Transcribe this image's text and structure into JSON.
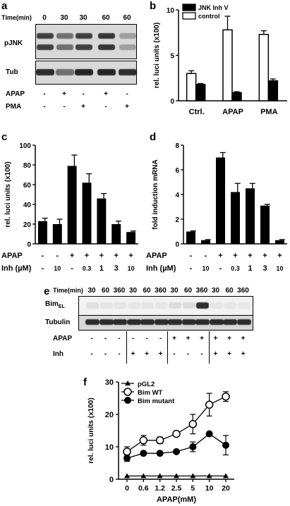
{
  "panels": {
    "a": {
      "letter": "a",
      "time_label": "Time(min)",
      "times": [
        "0",
        "30",
        "30",
        "60",
        "60"
      ],
      "blot_labels": [
        "pJNK",
        "Tub"
      ],
      "rows": [
        {
          "label": "APAP",
          "cells": [
            "-",
            "+",
            "-",
            "+",
            "-"
          ]
        },
        {
          "label": "PMA",
          "cells": [
            "-",
            "-",
            "+",
            "-",
            "+"
          ]
        }
      ],
      "band_levels": {
        "pJNK": [
          0.8,
          0.55,
          0.8,
          0.85,
          0.3
        ],
        "Tub": [
          0.9,
          0.55,
          0.95,
          0.95,
          0.9
        ]
      }
    },
    "e": {
      "letter": "e",
      "time_label": "Time(min)",
      "times": [
        "30",
        "60",
        "360",
        "30",
        "60",
        "360",
        "30",
        "60",
        "360",
        "30",
        "60",
        "360"
      ],
      "blot_labels": [
        "Bim",
        "EL",
        "Tubulin"
      ],
      "rows": [
        {
          "label": "APAP",
          "cells": [
            "-",
            "-",
            "-",
            "-",
            "-",
            "-",
            "+",
            "+",
            "+",
            "+",
            "+",
            "+"
          ]
        },
        {
          "label": "Inh",
          "cells": [
            "-",
            "-",
            "-",
            "+",
            "+",
            "+",
            "-",
            "-",
            "-",
            "+",
            "+",
            "+"
          ]
        }
      ],
      "band_levels": {
        "Bim": [
          0.08,
          0.06,
          0.05,
          0.05,
          0.06,
          0.05,
          0.1,
          0.1,
          0.9,
          0.05,
          0.05,
          0.05
        ],
        "Tubulin": [
          0.9,
          0.9,
          0.9,
          0.9,
          0.9,
          0.9,
          0.9,
          0.9,
          0.9,
          0.9,
          0.9,
          0.9
        ]
      }
    }
  },
  "chart_data": [
    {
      "panel": "b",
      "type": "bar",
      "title": "",
      "ylabel": "rel. luci units (x100)",
      "xlabel": "",
      "categories": [
        "Ctrl.",
        "APAP",
        "PMA"
      ],
      "ylim": [
        0,
        10
      ],
      "yticks": [
        "0",
        "5",
        "10"
      ],
      "legend_position": "top-left",
      "series": [
        {
          "name": "control",
          "color": "#ffffff",
          "values": [
            3.0,
            7.8,
            7.3
          ],
          "errors": [
            0.3,
            1.5,
            0.4
          ]
        },
        {
          "name": "JNK Inh V",
          "color": "#000000",
          "values": [
            1.8,
            0.9,
            2.2
          ],
          "errors": [
            0.1,
            0.1,
            0.2
          ]
        }
      ],
      "legend_order": [
        "JNK Inh V",
        "control"
      ]
    },
    {
      "panel": "c",
      "type": "bar",
      "title": "",
      "ylabel": "rel. luci units (x100)",
      "xlabel": "",
      "ylim": [
        0,
        100
      ],
      "yticks": [
        "0",
        "20",
        "40",
        "60",
        "80",
        "100"
      ],
      "values": [
        23,
        20,
        79,
        62,
        46,
        20,
        12
      ],
      "errors": [
        3,
        5,
        11,
        9,
        5,
        3,
        1
      ],
      "rows": [
        {
          "label": "APAP",
          "cells": [
            "-",
            "-",
            "+",
            "+",
            "+",
            "+",
            "+"
          ]
        },
        {
          "label": "Inh (µM)",
          "cells": [
            "-",
            "10",
            "-",
            "0.3",
            "1",
            "3",
            "10"
          ]
        }
      ]
    },
    {
      "panel": "d",
      "type": "bar",
      "title": "",
      "ylabel": "fold induction mRNA",
      "xlabel": "",
      "ylim": [
        0,
        8
      ],
      "yticks": [
        "0",
        "2",
        "4",
        "6",
        "8"
      ],
      "values": [
        1.0,
        0.3,
        7.0,
        4.2,
        4.5,
        3.1,
        0.3
      ],
      "errors": [
        0.05,
        0.05,
        0.4,
        0.7,
        0.4,
        0.1,
        0.05
      ],
      "rows": [
        {
          "label": "APAP",
          "cells": [
            "-",
            "-",
            "+",
            "+",
            "+",
            "+",
            "+"
          ]
        },
        {
          "label": "Inh (µM)",
          "cells": [
            "-",
            "10",
            "-",
            "0.3",
            "1",
            "3",
            "10"
          ]
        }
      ]
    },
    {
      "panel": "f",
      "type": "line",
      "title": "",
      "ylabel": "rel. luci units (x100)",
      "xlabel": "APAP(mM)",
      "x": [
        "0",
        "0.6",
        "1.2",
        "2.5",
        "5",
        "10",
        "20"
      ],
      "ylim": [
        0,
        30
      ],
      "yticks": [
        "0",
        "10",
        "20",
        "30"
      ],
      "legend_position": "top-left",
      "series": [
        {
          "name": "pGL2",
          "marker": "triangle",
          "values": [
            1,
            1,
            1,
            1,
            1,
            1,
            1
          ],
          "errors": [
            0,
            0,
            0,
            0,
            0,
            0,
            0
          ]
        },
        {
          "name": "Bim WT",
          "marker": "open-circle",
          "values": [
            8.5,
            12,
            12,
            14,
            17,
            23,
            25.5
          ],
          "errors": [
            1.5,
            1.5,
            1,
            0.5,
            3,
            3.5,
            1.5
          ]
        },
        {
          "name": "Bim mutant",
          "marker": "filled-circle",
          "values": [
            6.5,
            8,
            8,
            8.5,
            10,
            14,
            10.5
          ],
          "errors": [
            1,
            0.5,
            0.5,
            0.5,
            1.5,
            0.5,
            3
          ]
        }
      ]
    }
  ]
}
